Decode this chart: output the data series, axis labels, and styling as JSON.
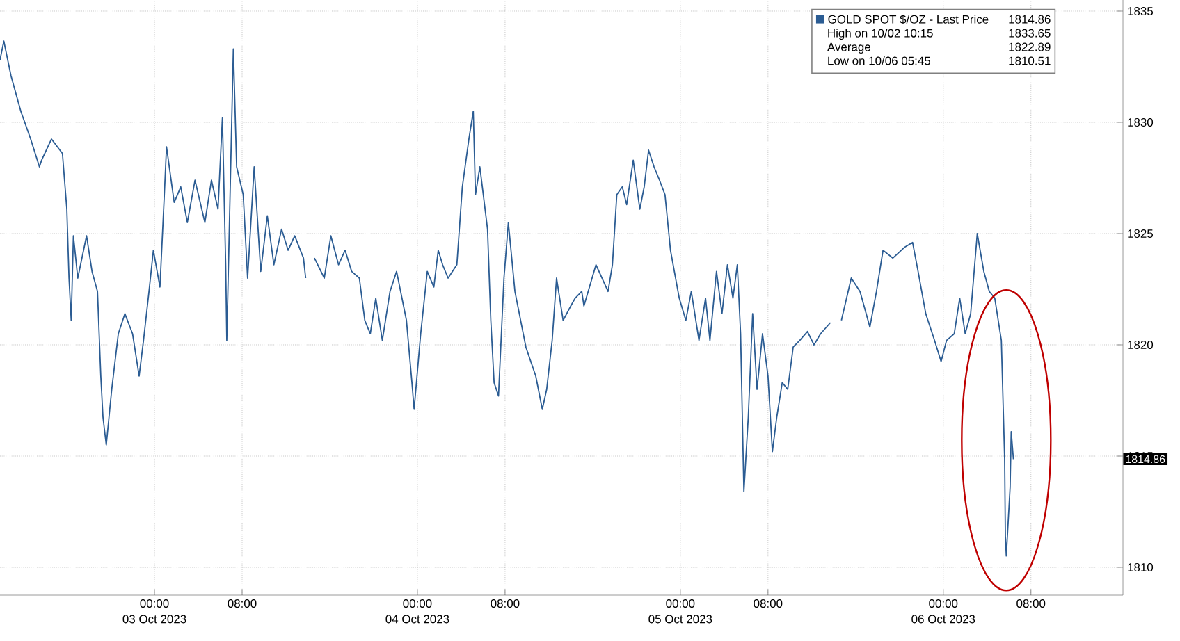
{
  "chart_data": {
    "type": "line",
    "x": [
      "2023-10-02T09:54",
      "2023-10-02T10:15",
      "2023-10-02T10:54",
      "2023-10-02T11:48",
      "2023-10-02T12:42",
      "2023-10-02T13:30",
      "2023-10-02T13:42",
      "2023-10-02T14:36",
      "2023-10-02T15:36",
      "2023-10-02T16:00",
      "2023-10-02T16:12",
      "2023-10-02T16:24",
      "2023-10-02T16:36",
      "2023-10-02T17:00",
      "2023-10-02T17:48",
      "2023-10-02T18:18",
      "2023-10-02T18:48",
      "2023-10-02T19:06",
      "2023-10-02T19:18",
      "2023-10-02T19:36",
      "2023-10-02T20:06",
      "2023-10-02T20:42",
      "2023-10-02T21:18",
      "2023-10-02T22:00",
      "2023-10-02T22:36",
      "2023-10-02T23:00",
      "2023-10-02T23:30",
      "2023-10-02T23:54",
      "2023-10-03T00:30",
      "2023-10-03T00:54",
      "2023-10-03T01:06",
      "2023-10-03T01:48",
      "2023-10-03T02:24",
      "2023-10-03T03:00",
      "2023-10-03T03:42",
      "2023-10-03T04:36",
      "2023-10-03T05:12",
      "2023-10-03T05:48",
      "2023-10-03T06:12",
      "2023-10-03T06:30",
      "2023-10-03T06:36",
      "2023-10-03T06:54",
      "2023-10-03T07:12",
      "2023-10-03T07:30",
      "2023-10-03T08:06",
      "2023-10-03T08:30",
      "2023-10-03T09:06",
      "2023-10-03T09:42",
      "2023-10-03T10:18",
      "2023-10-03T10:54",
      "2023-10-03T11:36",
      "2023-10-03T12:12",
      "2023-10-03T12:48",
      "2023-10-03T13:36",
      "2023-10-03T13:48",
      "2023-10-03T14:12",
      "2023-10-03T14:36",
      "2023-10-03T15:30",
      "2023-10-03T16:06",
      "2023-10-03T16:48",
      "2023-10-03T17:24",
      "2023-10-03T18:00",
      "2023-10-03T18:42",
      "2023-10-03T19:12",
      "2023-10-03T19:42",
      "2023-10-03T20:12",
      "2023-10-03T20:48",
      "2023-10-03T21:30",
      "2023-10-03T22:06",
      "2023-10-03T23:00",
      "2023-10-03T23:30",
      "2023-10-03T23:42",
      "2023-10-04T00:18",
      "2023-10-04T00:54",
      "2023-10-04T01:30",
      "2023-10-04T01:54",
      "2023-10-04T02:18",
      "2023-10-04T02:48",
      "2023-10-04T03:36",
      "2023-10-04T04:06",
      "2023-10-04T04:42",
      "2023-10-04T05:06",
      "2023-10-04T05:18",
      "2023-10-04T05:42",
      "2023-10-04T06:24",
      "2023-10-04T06:42",
      "2023-10-04T07:00",
      "2023-10-04T07:24",
      "2023-10-04T07:54",
      "2023-10-04T08:18",
      "2023-10-04T08:54",
      "2023-10-04T09:54",
      "2023-10-04T10:48",
      "2023-10-04T11:24",
      "2023-10-04T11:48",
      "2023-10-04T12:18",
      "2023-10-04T12:42",
      "2023-10-04T13:18",
      "2023-10-04T14:00",
      "2023-10-04T14:24",
      "2023-10-04T15:00",
      "2023-10-04T15:12",
      "2023-10-04T16:18",
      "2023-10-04T17:24",
      "2023-10-04T17:48",
      "2023-10-04T18:12",
      "2023-10-04T18:42",
      "2023-10-04T19:06",
      "2023-10-04T19:42",
      "2023-10-04T20:18",
      "2023-10-04T20:42",
      "2023-10-04T21:06",
      "2023-10-04T21:36",
      "2023-10-04T22:06",
      "2023-10-04T22:36",
      "2023-10-04T23:06",
      "2023-10-04T23:54",
      "2023-10-05T00:30",
      "2023-10-05T01:00",
      "2023-10-05T01:42",
      "2023-10-05T02:18",
      "2023-10-05T02:42",
      "2023-10-05T03:18",
      "2023-10-05T03:48",
      "2023-10-05T04:18",
      "2023-10-05T04:48",
      "2023-10-05T05:12",
      "2023-10-05T05:30",
      "2023-10-05T05:48",
      "2023-10-05T06:12",
      "2023-10-05T06:36",
      "2023-10-05T07:00",
      "2023-10-05T07:30",
      "2023-10-05T08:00",
      "2023-10-05T08:24",
      "2023-10-05T08:48",
      "2023-10-05T09:18",
      "2023-10-05T09:48",
      "2023-10-05T10:18",
      "2023-10-05T10:54",
      "2023-10-05T11:36",
      "2023-10-05T12:12",
      "2023-10-05T12:48",
      "2023-10-05T13:42",
      "2023-10-05T14:12",
      "2023-10-05T14:42",
      "2023-10-05T15:36",
      "2023-10-05T16:24",
      "2023-10-05T17:18",
      "2023-10-05T17:54",
      "2023-10-05T18:30",
      "2023-10-05T19:24",
      "2023-10-05T20:30",
      "2023-10-05T21:12",
      "2023-10-05T21:42",
      "2023-10-05T22:24",
      "2023-10-05T23:12",
      "2023-10-05T23:48",
      "2023-10-06T00:18",
      "2023-10-06T01:00",
      "2023-10-06T01:30",
      "2023-10-06T02:00",
      "2023-10-06T02:30",
      "2023-10-06T03:06",
      "2023-10-06T03:42",
      "2023-10-06T04:12",
      "2023-10-06T04:42",
      "2023-10-06T05:18",
      "2023-10-06T05:36",
      "2023-10-06T05:40",
      "2023-10-06T05:45",
      "2023-10-06T06:06",
      "2023-10-06T06:12",
      "2023-10-06T06:24"
    ],
    "series": [
      {
        "name": "GOLD SPOT $/OZ - Last Price",
        "color": "#2b5c93",
        "values": [
          1832.8,
          1833.65,
          1832.1,
          1830.5,
          1829.25,
          1828.0,
          1828.3,
          1829.25,
          1828.6,
          1826.1,
          1823.0,
          1821.1,
          1824.9,
          1823.0,
          1824.9,
          1823.3,
          1822.4,
          1818.6,
          1816.75,
          1815.5,
          1818.0,
          1820.5,
          1821.4,
          1820.5,
          1818.6,
          1820.2,
          1822.4,
          1824.25,
          1822.6,
          1826.75,
          1828.9,
          1826.4,
          1827.1,
          1825.5,
          1827.4,
          1825.5,
          1827.4,
          1826.1,
          1830.2,
          1823.6,
          1820.2,
          1826.75,
          1833.3,
          1828.0,
          1826.75,
          1823.0,
          1828.0,
          1823.3,
          1825.8,
          1823.6,
          1825.2,
          1824.25,
          1824.9,
          1823.9,
          1823.0,
          null,
          1823.9,
          1823.0,
          1824.9,
          1823.6,
          1824.25,
          1823.3,
          1823.0,
          1821.1,
          1820.5,
          1822.1,
          1820.2,
          1822.4,
          1823.3,
          1821.1,
          1818.3,
          1817.1,
          1820.5,
          1823.3,
          1822.6,
          1824.25,
          1823.6,
          1823.0,
          1823.6,
          1827.1,
          1829.25,
          1830.5,
          1826.75,
          1828.0,
          1825.2,
          1821.1,
          1818.3,
          1817.7,
          1823.0,
          1825.5,
          1822.4,
          1819.9,
          1818.6,
          1817.1,
          1818.0,
          1820.2,
          1823.0,
          1821.1,
          1821.75,
          1822.1,
          1822.4,
          1821.75,
          1823.6,
          1822.4,
          1823.6,
          1826.75,
          1827.1,
          1826.3,
          1828.3,
          1826.1,
          1827.1,
          1828.75,
          1828.0,
          1827.4,
          1826.75,
          1824.25,
          1822.1,
          1821.1,
          1822.4,
          1820.2,
          1822.1,
          1820.2,
          1823.3,
          1821.4,
          1823.6,
          1822.1,
          1823.6,
          1820.5,
          1813.4,
          1816.75,
          1821.4,
          1818.0,
          1820.5,
          1818.6,
          1815.2,
          1816.75,
          1818.3,
          1818.0,
          1819.9,
          1820.2,
          1820.6,
          1820.0,
          1820.5,
          1821.0,
          null,
          1821.1,
          1823.0,
          1822.4,
          1820.8,
          1822.4,
          1824.25,
          1823.9,
          1824.4,
          1824.6,
          1823.3,
          1821.4,
          1820.2,
          1819.25,
          1820.2,
          1820.5,
          1822.1,
          1820.5,
          1821.4,
          1825.0,
          1823.3,
          1822.4,
          1822.1,
          1820.2,
          1814.9,
          1811.4,
          1810.51,
          1813.6,
          1816.1,
          1814.86
        ]
      }
    ],
    "xlim": [
      "2023-10-02T09:54",
      "2023-10-06T16:24"
    ],
    "ylim": [
      1808.75,
      1835.5
    ],
    "xticks": [
      {
        "value": "2023-10-03T00:00",
        "label": "00:00"
      },
      {
        "value": "2023-10-03T08:00",
        "label": "08:00"
      },
      {
        "value": "2023-10-04T00:00",
        "label": "00:00"
      },
      {
        "value": "2023-10-04T08:00",
        "label": "08:00"
      },
      {
        "value": "2023-10-05T00:00",
        "label": "00:00"
      },
      {
        "value": "2023-10-05T08:00",
        "label": "08:00"
      },
      {
        "value": "2023-10-06T00:00",
        "label": "00:00"
      },
      {
        "value": "2023-10-06T08:00",
        "label": "08:00"
      }
    ],
    "yticks": [
      1810,
      1815,
      1820,
      1825,
      1830,
      1835
    ],
    "grid": true,
    "legend": "top right",
    "annotations": [
      "1814.86",
      "High on 10/02 10:15",
      "1833.65",
      "Average",
      "1822.89",
      "Low on 10/06 05:45",
      "1810.51",
      "03 Oct 2023",
      "04 Oct 2023",
      "05 Oct 2023",
      "06 Oct 2023",
      "1814.86"
    ]
  }
}
